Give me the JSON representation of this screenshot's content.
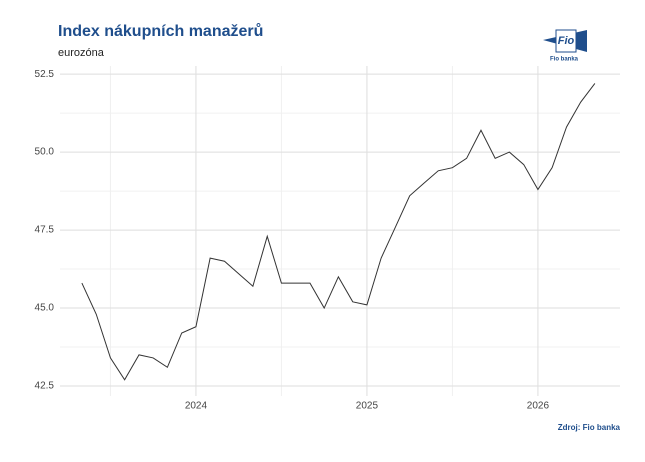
{
  "chart_data": {
    "type": "line",
    "title": "Index nákupních manažerů",
    "subtitle": "eurozóna",
    "source": "Zdroj: Fio banka",
    "x": [
      2023.333,
      2023.417,
      2023.5,
      2023.583,
      2023.667,
      2023.75,
      2023.833,
      2023.917,
      2024.0,
      2024.083,
      2024.167,
      2024.25,
      2024.333,
      2024.417,
      2024.5,
      2024.583,
      2024.667,
      2024.75,
      2024.833,
      2024.917,
      2025.0,
      2025.083,
      2025.167,
      2025.25,
      2025.333,
      2025.417,
      2025.5,
      2025.583,
      2025.667,
      2025.75,
      2025.833,
      2025.917,
      2026.0,
      2026.083,
      2026.167,
      2026.25,
      2026.333
    ],
    "series": [
      {
        "color": "#333333",
        "values": [
          45.8,
          44.8,
          43.4,
          42.7,
          43.5,
          43.4,
          43.1,
          44.2,
          44.4,
          46.6,
          46.5,
          46.1,
          45.7,
          47.3,
          45.8,
          45.8,
          45.8,
          45.0,
          46.0,
          45.2,
          45.1,
          46.6,
          47.6,
          48.6,
          49.0,
          49.4,
          49.5,
          49.8,
          50.7,
          49.8,
          50.0,
          49.6,
          48.8,
          49.5,
          50.8,
          51.6,
          52.2
        ]
      }
    ],
    "xlim": [
      2023.205,
      2026.48
    ],
    "xticks": [
      2024,
      2025,
      2026
    ],
    "ylim": [
      42.18,
      52.76
    ],
    "yticks": [
      42.5,
      {
        "value": 45,
        "label": "45.0"
      },
      47.5,
      {
        "value": 50,
        "label": "50.0"
      },
      52.5
    ],
    "grid": true
  },
  "logo": {
    "text": "Fio",
    "caption": "Fio banka"
  }
}
